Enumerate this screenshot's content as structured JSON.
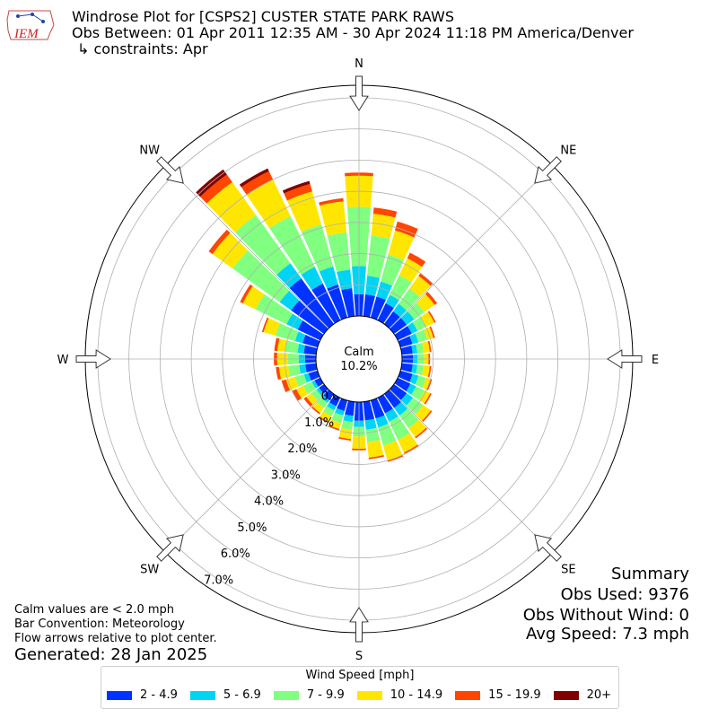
{
  "header": {
    "title": "Windrose Plot for [CSPS2] CUSTER STATE PARK RAWS",
    "obs_between": "Obs Between: 01 Apr 2011 12:35 AM - 30 Apr 2024 11:18 PM America/Denver",
    "constraints": "↳ constraints: Apr",
    "logo_text": "IEM"
  },
  "notes": {
    "calm_note": "Calm values are < 2.0 mph",
    "bar_convention": "Bar Convention: Meteorology",
    "flow_arrows": "Flow arrows relative to plot center.",
    "generated": "Generated: 28 Jan 2025"
  },
  "summary": {
    "title": "Summary",
    "obs_used": "Obs Used: 9376",
    "obs_without_wind": "Obs Without Wind: 0",
    "avg_speed": "Avg Speed: 7.3 mph"
  },
  "legend": {
    "title": "Wind Speed [mph]",
    "items": [
      {
        "label": "2 - 4.9",
        "color": "#0033ff"
      },
      {
        "label": "5 - 6.9",
        "color": "#00d4f5"
      },
      {
        "label": "7 - 9.9",
        "color": "#80ff80"
      },
      {
        "label": "10 - 14.9",
        "color": "#ffe600"
      },
      {
        "label": "15 - 19.9",
        "color": "#ff4500"
      },
      {
        "label": "20+",
        "color": "#800000"
      }
    ]
  },
  "chart_data": {
    "type": "windrose",
    "title": "Windrose Plot for [CSPS2] CUSTER STATE PARK RAWS",
    "calm_label": "Calm",
    "calm_value": "10.2%",
    "radial_labels": [
      "0.0%",
      "1.0%",
      "2.0%",
      "3.0%",
      "4.0%",
      "5.0%",
      "6.0%",
      "7.0%"
    ],
    "radial_max": 7.0,
    "compass_labels": [
      "N",
      "NE",
      "E",
      "SE",
      "S",
      "SW",
      "W",
      "NW"
    ],
    "speed_bins": [
      "2 - 4.9",
      "5 - 6.9",
      "7 - 9.9",
      "10 - 14.9",
      "15 - 19.9",
      "20+"
    ],
    "colors": [
      "#0033ff",
      "#00d4f5",
      "#80ff80",
      "#ffe600",
      "#ff4500",
      "#800000"
    ],
    "directions_deg": [
      0,
      10,
      20,
      30,
      40,
      50,
      60,
      70,
      80,
      90,
      100,
      110,
      120,
      130,
      140,
      150,
      160,
      170,
      180,
      190,
      200,
      210,
      220,
      230,
      240,
      250,
      260,
      270,
      280,
      290,
      300,
      310,
      320,
      330,
      340,
      350
    ],
    "cumulative_percent": [
      [
        0.7,
        1.6,
        3.5,
        4.5,
        4.6,
        4.6
      ],
      [
        0.7,
        1.3,
        2.6,
        3.3,
        3.5,
        3.5
      ],
      [
        0.7,
        1.2,
        2.1,
        2.9,
        3.2,
        3.2
      ],
      [
        0.6,
        0.9,
        1.6,
        2.2,
        2.4,
        2.4
      ],
      [
        0.5,
        0.8,
        1.4,
        1.9,
        2.0,
        2.0
      ],
      [
        0.5,
        0.8,
        1.2,
        1.6,
        1.7,
        1.7
      ],
      [
        0.5,
        0.7,
        1.0,
        1.3,
        1.35,
        1.35
      ],
      [
        0.4,
        0.6,
        0.9,
        1.1,
        1.15,
        1.15
      ],
      [
        0.35,
        0.5,
        0.7,
        0.9,
        0.95,
        0.95
      ],
      [
        0.35,
        0.5,
        0.7,
        0.85,
        0.9,
        0.9
      ],
      [
        0.35,
        0.5,
        0.7,
        0.9,
        0.95,
        0.95
      ],
      [
        0.4,
        0.6,
        0.85,
        1.0,
        1.05,
        1.05
      ],
      [
        0.45,
        0.65,
        0.95,
        1.15,
        1.2,
        1.2
      ],
      [
        0.5,
        0.75,
        1.15,
        1.45,
        1.5,
        1.5
      ],
      [
        0.55,
        0.85,
        1.35,
        1.7,
        1.75,
        1.75
      ],
      [
        0.55,
        0.85,
        1.5,
        1.95,
        2.0,
        2.0
      ],
      [
        0.6,
        0.9,
        1.5,
        2.0,
        2.05,
        2.05
      ],
      [
        0.6,
        0.9,
        1.3,
        1.8,
        1.85,
        1.85
      ],
      [
        0.6,
        0.8,
        1.1,
        1.5,
        1.55,
        1.55
      ],
      [
        0.45,
        0.65,
        0.9,
        1.2,
        1.25,
        1.25
      ],
      [
        0.35,
        0.5,
        0.75,
        0.95,
        1.0,
        1.0
      ],
      [
        0.3,
        0.45,
        0.65,
        0.85,
        0.9,
        0.9
      ],
      [
        0.25,
        0.35,
        0.55,
        0.75,
        0.8,
        0.8
      ],
      [
        0.2,
        0.3,
        0.5,
        0.7,
        0.8,
        0.8
      ],
      [
        0.2,
        0.3,
        0.6,
        0.85,
        1.0,
        1.0
      ],
      [
        0.3,
        0.45,
        0.75,
        1.05,
        1.2,
        1.2
      ],
      [
        0.35,
        0.55,
        0.9,
        1.2,
        1.3,
        1.3
      ],
      [
        0.35,
        0.55,
        0.9,
        1.25,
        1.35,
        1.35
      ],
      [
        0.4,
        0.6,
        1.0,
        1.25,
        1.35,
        1.35
      ],
      [
        0.5,
        0.75,
        1.4,
        1.8,
        1.85,
        1.85
      ],
      [
        0.8,
        1.2,
        2.3,
        2.75,
        2.85,
        2.85
      ],
      [
        1.3,
        1.75,
        3.6,
        4.4,
        4.55,
        4.55
      ],
      [
        1.8,
        2.4,
        4.3,
        5.6,
        5.9,
        6.1
      ],
      [
        1.3,
        1.9,
        3.7,
        5.0,
        5.3,
        5.4
      ],
      [
        1.1,
        1.7,
        3.1,
        4.2,
        4.45,
        4.55
      ],
      [
        0.9,
        1.5,
        2.7,
        3.7,
        3.8,
        3.8
      ]
    ]
  }
}
